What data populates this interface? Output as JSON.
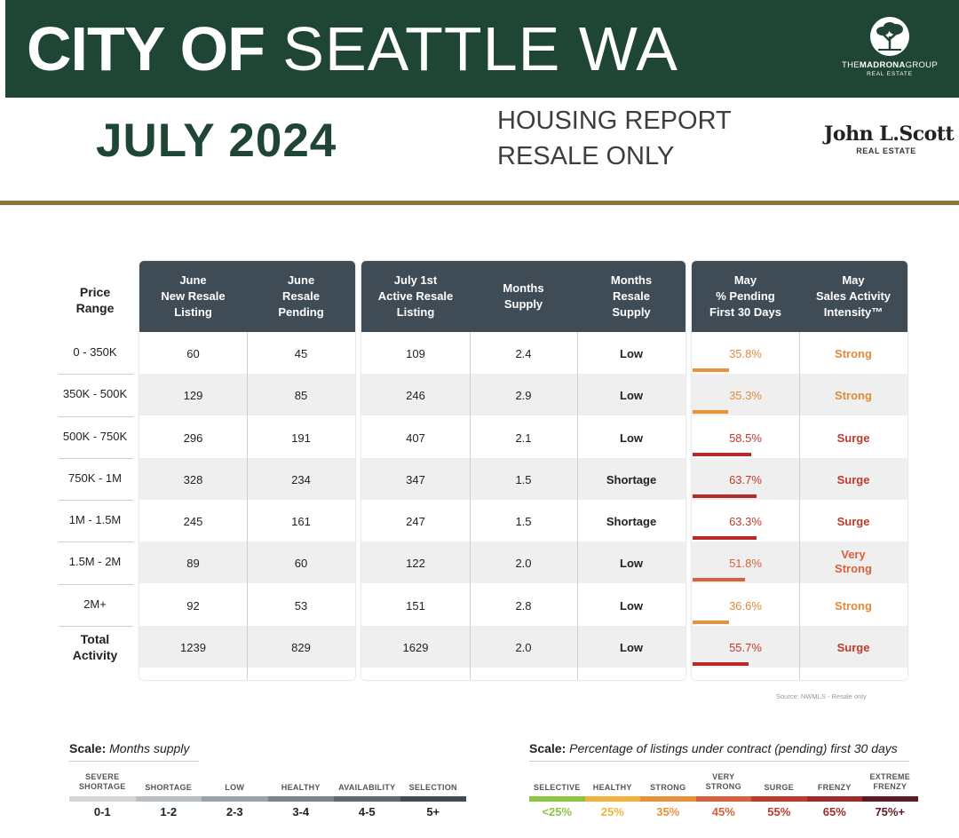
{
  "header": {
    "title_bold": "CITY OF",
    "title_light": "SEATTLE WA",
    "month": "JULY 2024",
    "report_line1": "HOUSING REPORT",
    "report_line2": "RESALE ONLY",
    "madrona_prefix": "THE",
    "madrona_name": "MADRONA",
    "madrona_suffix": "GROUP",
    "madrona_sub": "REAL ESTATE",
    "jls_name": "John L.Scott",
    "jls_sub": "REAL ESTATE",
    "banner_color": "#1f4634",
    "rule_color": "#8a7a3a"
  },
  "table": {
    "row_label_header": "Price\nRange",
    "columns": [
      "June\nNew Resale\nListing",
      "June\nResale\nPending",
      "July 1st\nActive Resale\nListing",
      "Months\nSupply",
      "Months\nResale\nSupply",
      "May\n% Pending\nFirst 30 Days",
      "May\nSales Activity\nIntensity™"
    ],
    "rows": [
      {
        "range": "0 - 350K",
        "new_listing": "60",
        "pending": "45",
        "active": "109",
        "supply": "2.4",
        "resale_supply": "Low",
        "pct_pending": "35.8%",
        "pct_value": 35.8,
        "intensity": "Strong"
      },
      {
        "range": "350K - 500K",
        "new_listing": "129",
        "pending": "85",
        "active": "246",
        "supply": "2.9",
        "resale_supply": "Low",
        "pct_pending": "35.3%",
        "pct_value": 35.3,
        "intensity": "Strong"
      },
      {
        "range": "500K - 750K",
        "new_listing": "296",
        "pending": "191",
        "active": "407",
        "supply": "2.1",
        "resale_supply": "Low",
        "pct_pending": "58.5%",
        "pct_value": 58.5,
        "intensity": "Surge"
      },
      {
        "range": "750K - 1M",
        "new_listing": "328",
        "pending": "234",
        "active": "347",
        "supply": "1.5",
        "resale_supply": "Shortage",
        "pct_pending": "63.7%",
        "pct_value": 63.7,
        "intensity": "Surge"
      },
      {
        "range": "1M - 1.5M",
        "new_listing": "245",
        "pending": "161",
        "active": "247",
        "supply": "1.5",
        "resale_supply": "Shortage",
        "pct_pending": "63.3%",
        "pct_value": 63.3,
        "intensity": "Surge"
      },
      {
        "range": "1.5M - 2M",
        "new_listing": "89",
        "pending": "60",
        "active": "122",
        "supply": "2.0",
        "resale_supply": "Low",
        "pct_pending": "51.8%",
        "pct_value": 51.8,
        "intensity": "Very\nStrong"
      },
      {
        "range": "2M+",
        "new_listing": "92",
        "pending": "53",
        "active": "151",
        "supply": "2.8",
        "resale_supply": "Low",
        "pct_pending": "36.6%",
        "pct_value": 36.6,
        "intensity": "Strong"
      },
      {
        "range": "Total\nActivity",
        "new_listing": "1239",
        "pending": "829",
        "active": "1629",
        "supply": "2.0",
        "resale_supply": "Low",
        "pct_pending": "55.7%",
        "pct_value": 55.7,
        "intensity": "Surge"
      }
    ],
    "header_color": "#3f4b55",
    "intensity_colors": {
      "Strong": "#e08a3c",
      "Very\nStrong": "#d9603c",
      "Surge": "#c0392b"
    },
    "bar_colors": {
      "Strong": "#e8913a",
      "Very\nStrong": "#d9603c",
      "Surge": "#b72a2a"
    }
  },
  "source": "Source: NWMLS - Resale only",
  "scale_supply": {
    "title_bold": "Scale:",
    "title_rest": " Months supply",
    "items": [
      {
        "label": "SEVERE\nSHORTAGE",
        "value": "0-1",
        "color": "#d3d6d9"
      },
      {
        "label": "SHORTAGE",
        "value": "1-2",
        "color": "#b9bec3"
      },
      {
        "label": "LOW",
        "value": "2-3",
        "color": "#9ba2a8"
      },
      {
        "label": "HEALTHY",
        "value": "3-4",
        "color": "#7d858c"
      },
      {
        "label": "AVAILABILITY",
        "value": "4-5",
        "color": "#5f6870"
      },
      {
        "label": "SELECTION",
        "value": "5+",
        "color": "#3f4b55"
      }
    ]
  },
  "scale_pending": {
    "title_bold": "Scale:",
    "title_rest": " Percentage of listings under contract (pending) first 30 days",
    "items": [
      {
        "label": "SELECTIVE",
        "value": "<25%",
        "color": "#8cc63f"
      },
      {
        "label": "HEALTHY",
        "value": "25%",
        "color": "#f2b33d"
      },
      {
        "label": "STRONG",
        "value": "35%",
        "color": "#e8913a"
      },
      {
        "label": "VERY\nSTRONG",
        "value": "45%",
        "color": "#d9603c"
      },
      {
        "label": "SURGE",
        "value": "55%",
        "color": "#c0392b"
      },
      {
        "label": "FRENZY",
        "value": "65%",
        "color": "#9e2a2a"
      },
      {
        "label": "EXTREME\nFRENZY",
        "value": "75%+",
        "color": "#5e1a24"
      }
    ]
  }
}
